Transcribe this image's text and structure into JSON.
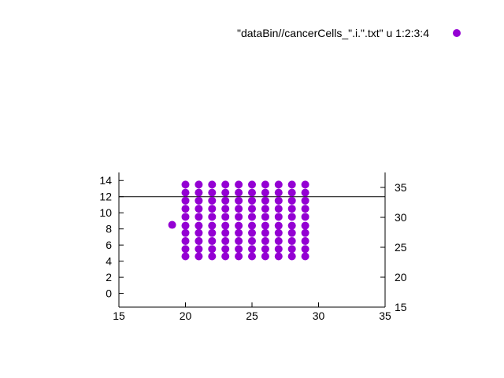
{
  "chart_data": {
    "type": "scatter",
    "title": "",
    "legend": {
      "label": "\"dataBin//cancerCells_\".i.\".txt\" u 1:2:3:4",
      "placement": "top-right"
    },
    "color": "#9400d3",
    "x_axis": {
      "range": [
        15,
        35
      ],
      "ticks": [
        15,
        20,
        25,
        30,
        35
      ],
      "label": ""
    },
    "y_axis_left": {
      "range": [
        -1.7,
        15
      ],
      "ticks": [
        0,
        2,
        4,
        6,
        8,
        10,
        12,
        14
      ],
      "label": ""
    },
    "y_axis_right": {
      "range": [
        15,
        37.5
      ],
      "ticks": [
        15,
        20,
        25,
        30,
        35
      ],
      "label": ""
    },
    "grid": false,
    "series": [
      {
        "points": [
          {
            "x": 19,
            "y": 8.5
          },
          {
            "x": 20,
            "y": 4.6
          },
          {
            "x": 20,
            "y": 5.5
          },
          {
            "x": 20,
            "y": 6.5
          },
          {
            "x": 20,
            "y": 7.5
          },
          {
            "x": 20,
            "y": 8.4
          },
          {
            "x": 20,
            "y": 9.5
          },
          {
            "x": 20,
            "y": 10.5
          },
          {
            "x": 20,
            "y": 11.5
          },
          {
            "x": 20,
            "y": 12.5
          },
          {
            "x": 20,
            "y": 13.5
          },
          {
            "x": 21,
            "y": 4.6
          },
          {
            "x": 21,
            "y": 5.5
          },
          {
            "x": 21,
            "y": 6.5
          },
          {
            "x": 21,
            "y": 7.5
          },
          {
            "x": 21,
            "y": 8.4
          },
          {
            "x": 21,
            "y": 9.5
          },
          {
            "x": 21,
            "y": 10.5
          },
          {
            "x": 21,
            "y": 11.5
          },
          {
            "x": 21,
            "y": 12.5
          },
          {
            "x": 21,
            "y": 13.5
          },
          {
            "x": 22,
            "y": 4.6
          },
          {
            "x": 22,
            "y": 5.5
          },
          {
            "x": 22,
            "y": 6.5
          },
          {
            "x": 22,
            "y": 7.5
          },
          {
            "x": 22,
            "y": 8.4
          },
          {
            "x": 22,
            "y": 9.5
          },
          {
            "x": 22,
            "y": 10.5
          },
          {
            "x": 22,
            "y": 11.5
          },
          {
            "x": 22,
            "y": 12.5
          },
          {
            "x": 22,
            "y": 13.5
          },
          {
            "x": 23,
            "y": 4.6
          },
          {
            "x": 23,
            "y": 5.5
          },
          {
            "x": 23,
            "y": 6.5
          },
          {
            "x": 23,
            "y": 7.5
          },
          {
            "x": 23,
            "y": 8.4
          },
          {
            "x": 23,
            "y": 9.5
          },
          {
            "x": 23,
            "y": 10.5
          },
          {
            "x": 23,
            "y": 11.5
          },
          {
            "x": 23,
            "y": 12.5
          },
          {
            "x": 23,
            "y": 13.5
          },
          {
            "x": 24,
            "y": 4.6
          },
          {
            "x": 24,
            "y": 5.5
          },
          {
            "x": 24,
            "y": 6.5
          },
          {
            "x": 24,
            "y": 7.5
          },
          {
            "x": 24,
            "y": 8.4
          },
          {
            "x": 24,
            "y": 9.5
          },
          {
            "x": 24,
            "y": 10.5
          },
          {
            "x": 24,
            "y": 11.5
          },
          {
            "x": 24,
            "y": 12.5
          },
          {
            "x": 24,
            "y": 13.5
          },
          {
            "x": 25,
            "y": 4.6
          },
          {
            "x": 25,
            "y": 5.5
          },
          {
            "x": 25,
            "y": 6.5
          },
          {
            "x": 25,
            "y": 7.5
          },
          {
            "x": 25,
            "y": 8.4
          },
          {
            "x": 25,
            "y": 9.5
          },
          {
            "x": 25,
            "y": 10.5
          },
          {
            "x": 25,
            "y": 11.5
          },
          {
            "x": 25,
            "y": 12.5
          },
          {
            "x": 25,
            "y": 13.5
          },
          {
            "x": 26,
            "y": 4.6
          },
          {
            "x": 26,
            "y": 5.5
          },
          {
            "x": 26,
            "y": 6.5
          },
          {
            "x": 26,
            "y": 7.5
          },
          {
            "x": 26,
            "y": 8.4
          },
          {
            "x": 26,
            "y": 9.5
          },
          {
            "x": 26,
            "y": 10.5
          },
          {
            "x": 26,
            "y": 11.5
          },
          {
            "x": 26,
            "y": 12.5
          },
          {
            "x": 26,
            "y": 13.5
          },
          {
            "x": 27,
            "y": 4.6
          },
          {
            "x": 27,
            "y": 5.5
          },
          {
            "x": 27,
            "y": 6.5
          },
          {
            "x": 27,
            "y": 7.5
          },
          {
            "x": 27,
            "y": 8.4
          },
          {
            "x": 27,
            "y": 9.5
          },
          {
            "x": 27,
            "y": 10.5
          },
          {
            "x": 27,
            "y": 11.5
          },
          {
            "x": 27,
            "y": 12.5
          },
          {
            "x": 27,
            "y": 13.5
          },
          {
            "x": 28,
            "y": 4.6
          },
          {
            "x": 28,
            "y": 5.5
          },
          {
            "x": 28,
            "y": 6.5
          },
          {
            "x": 28,
            "y": 7.5
          },
          {
            "x": 28,
            "y": 8.4
          },
          {
            "x": 28,
            "y": 9.5
          },
          {
            "x": 28,
            "y": 10.5
          },
          {
            "x": 28,
            "y": 11.5
          },
          {
            "x": 28,
            "y": 12.5
          },
          {
            "x": 28,
            "y": 13.5
          },
          {
            "x": 29,
            "y": 4.6
          },
          {
            "x": 29,
            "y": 5.5
          },
          {
            "x": 29,
            "y": 6.5
          },
          {
            "x": 29,
            "y": 7.5
          },
          {
            "x": 29,
            "y": 8.4
          },
          {
            "x": 29,
            "y": 9.5
          },
          {
            "x": 29,
            "y": 10.5
          },
          {
            "x": 29,
            "y": 11.5
          },
          {
            "x": 29,
            "y": 12.5
          },
          {
            "x": 29,
            "y": 13.5
          }
        ]
      }
    ]
  }
}
